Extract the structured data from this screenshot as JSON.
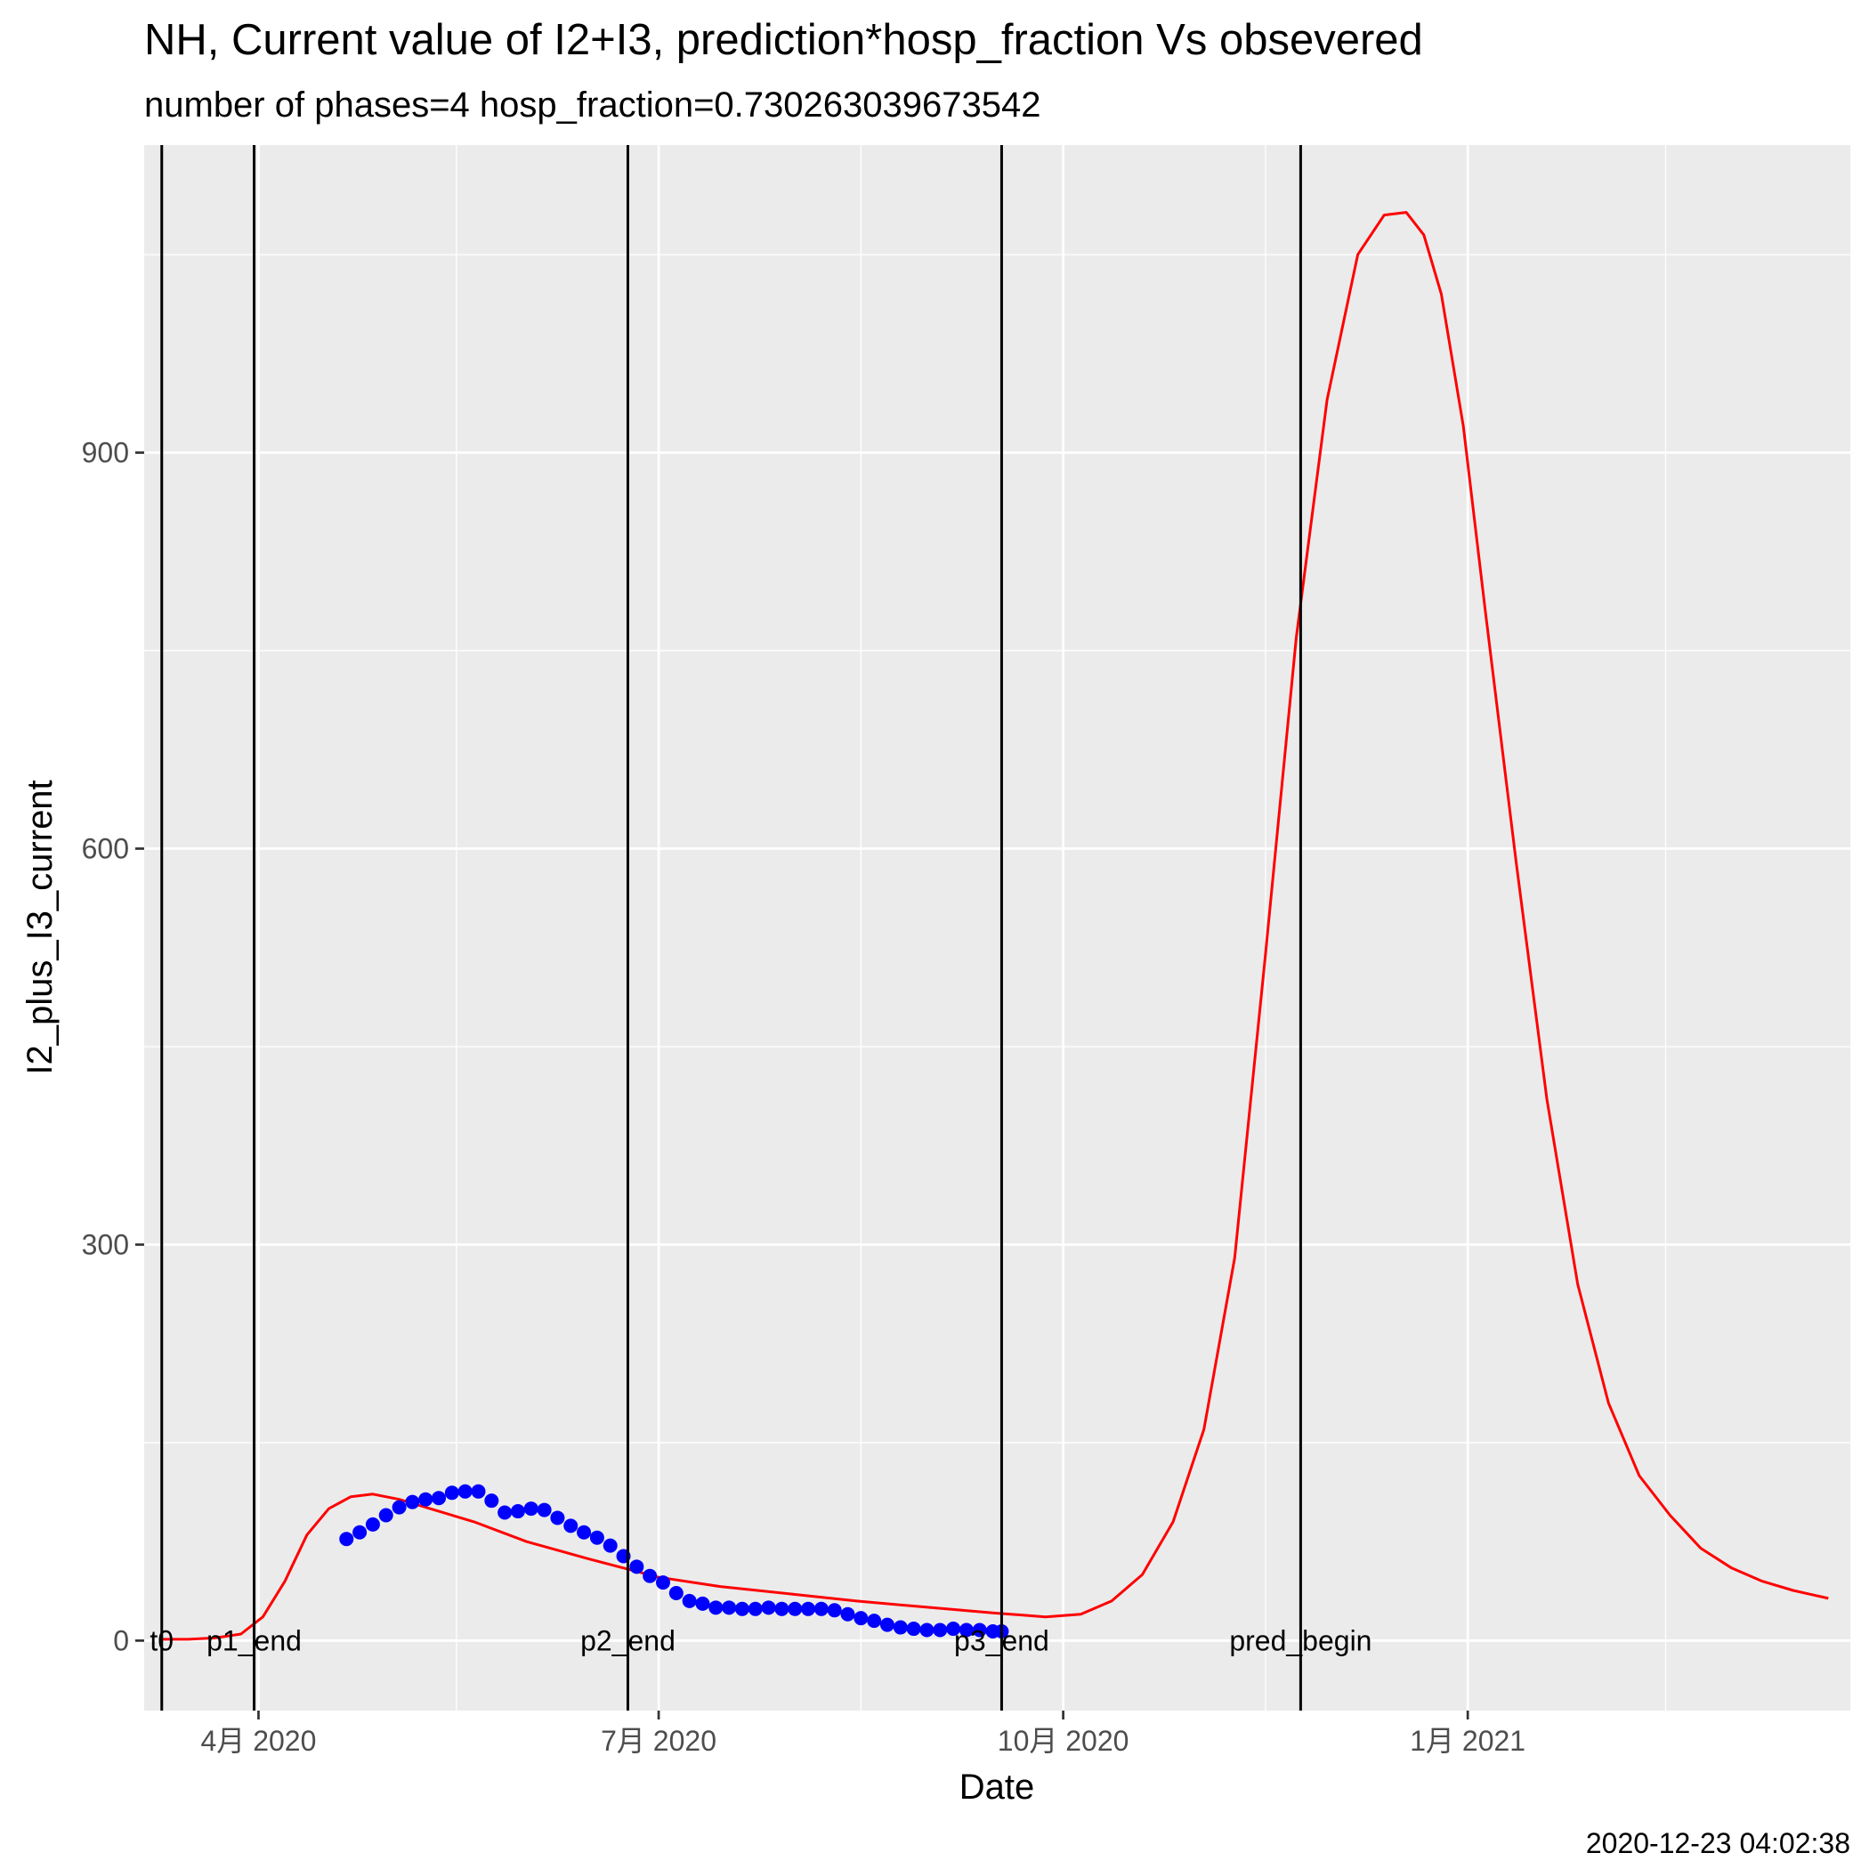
{
  "chart_data": {
    "type": "line",
    "title": "NH, Current value of I2+I3, prediction*hosp_fraction Vs obsevered",
    "subtitle": "number of phases=4   hosp_fraction=0.730263039673542",
    "xlabel": "Date",
    "ylabel": "I2_plus_I3_current",
    "caption": "2020-12-23 04:02:38",
    "xlim": [
      "2020-03-06",
      "2021-03-29"
    ],
    "ylim": [
      -53,
      1133
    ],
    "grid": true,
    "x_ticks": [
      {
        "date": "2020-04-01",
        "label": "4月 2020"
      },
      {
        "date": "2020-07-01",
        "label": "7月 2020"
      },
      {
        "date": "2020-10-01",
        "label": "10月 2020"
      },
      {
        "date": "2021-01-01",
        "label": "1月 2021"
      }
    ],
    "x_minor_ticks": [
      "2020-05-16",
      "2020-08-16",
      "2020-11-16",
      "2021-02-15"
    ],
    "y_ticks": [
      0,
      300,
      600,
      900
    ],
    "y_minor_ticks": [
      150,
      450,
      750,
      1050
    ],
    "vertical_lines": [
      {
        "date": "2020-03-10",
        "label": "t0"
      },
      {
        "date": "2020-03-31",
        "label": "p1_end"
      },
      {
        "date": "2020-06-24",
        "label": "p2_end"
      },
      {
        "date": "2020-09-17",
        "label": "p3_end"
      },
      {
        "date": "2020-11-24",
        "label": "pred_begin"
      }
    ],
    "series": [
      {
        "type": "line",
        "color": "#ff0000",
        "x": [
          "2020-03-10",
          "2020-03-16",
          "2020-03-22",
          "2020-03-28",
          "2020-04-02",
          "2020-04-07",
          "2020-04-12",
          "2020-04-17",
          "2020-04-22",
          "2020-04-27",
          "2020-05-03",
          "2020-05-10",
          "2020-05-20",
          "2020-06-01",
          "2020-06-15",
          "2020-07-01",
          "2020-07-15",
          "2020-08-01",
          "2020-08-15",
          "2020-09-01",
          "2020-09-15",
          "2020-09-27",
          "2020-10-05",
          "2020-10-12",
          "2020-10-19",
          "2020-10-26",
          "2020-11-02",
          "2020-11-09",
          "2020-11-16",
          "2020-11-23",
          "2020-11-30",
          "2020-12-07",
          "2020-12-13",
          "2020-12-18",
          "2020-12-22",
          "2020-12-26",
          "2020-12-31",
          "2021-01-05",
          "2021-01-12",
          "2021-01-19",
          "2021-01-26",
          "2021-02-02",
          "2021-02-09",
          "2021-02-16",
          "2021-02-23",
          "2021-03-02",
          "2021-03-09",
          "2021-03-16",
          "2021-03-24"
        ],
        "y": [
          1,
          1,
          2,
          5,
          18,
          45,
          80,
          100,
          109,
          111,
          107,
          100,
          90,
          75,
          62,
          48,
          41,
          35,
          30,
          25,
          21,
          18,
          20,
          30,
          50,
          90,
          160,
          290,
          520,
          760,
          940,
          1050,
          1080,
          1082,
          1065,
          1020,
          920,
          780,
          590,
          410,
          270,
          180,
          125,
          95,
          70,
          55,
          45,
          38,
          32
        ]
      },
      {
        "type": "scatter",
        "color": "#0000ff",
        "x": [
          "2020-04-21",
          "2020-04-24",
          "2020-04-27",
          "2020-04-30",
          "2020-05-03",
          "2020-05-06",
          "2020-05-09",
          "2020-05-12",
          "2020-05-15",
          "2020-05-18",
          "2020-05-21",
          "2020-05-24",
          "2020-05-27",
          "2020-05-30",
          "2020-06-02",
          "2020-06-05",
          "2020-06-08",
          "2020-06-11",
          "2020-06-14",
          "2020-06-17",
          "2020-06-20",
          "2020-06-23",
          "2020-06-26",
          "2020-06-29",
          "2020-07-02",
          "2020-07-05",
          "2020-07-08",
          "2020-07-11",
          "2020-07-14",
          "2020-07-17",
          "2020-07-20",
          "2020-07-23",
          "2020-07-26",
          "2020-07-29",
          "2020-08-01",
          "2020-08-04",
          "2020-08-07",
          "2020-08-10",
          "2020-08-13",
          "2020-08-16",
          "2020-08-19",
          "2020-08-22",
          "2020-08-25",
          "2020-08-28",
          "2020-08-31",
          "2020-09-03",
          "2020-09-06",
          "2020-09-09",
          "2020-09-12",
          "2020-09-15",
          "2020-09-17"
        ],
        "y": [
          77,
          82,
          88,
          95,
          101,
          105,
          107,
          108,
          112,
          113,
          113,
          106,
          97,
          98,
          100,
          99,
          93,
          87,
          82,
          78,
          72,
          64,
          56,
          49,
          44,
          36,
          30,
          28,
          25,
          25,
          24,
          24,
          25,
          24,
          24,
          24,
          24,
          23,
          20,
          17,
          15,
          12,
          10,
          9,
          8,
          8,
          9,
          8,
          8,
          7,
          7
        ]
      }
    ]
  }
}
